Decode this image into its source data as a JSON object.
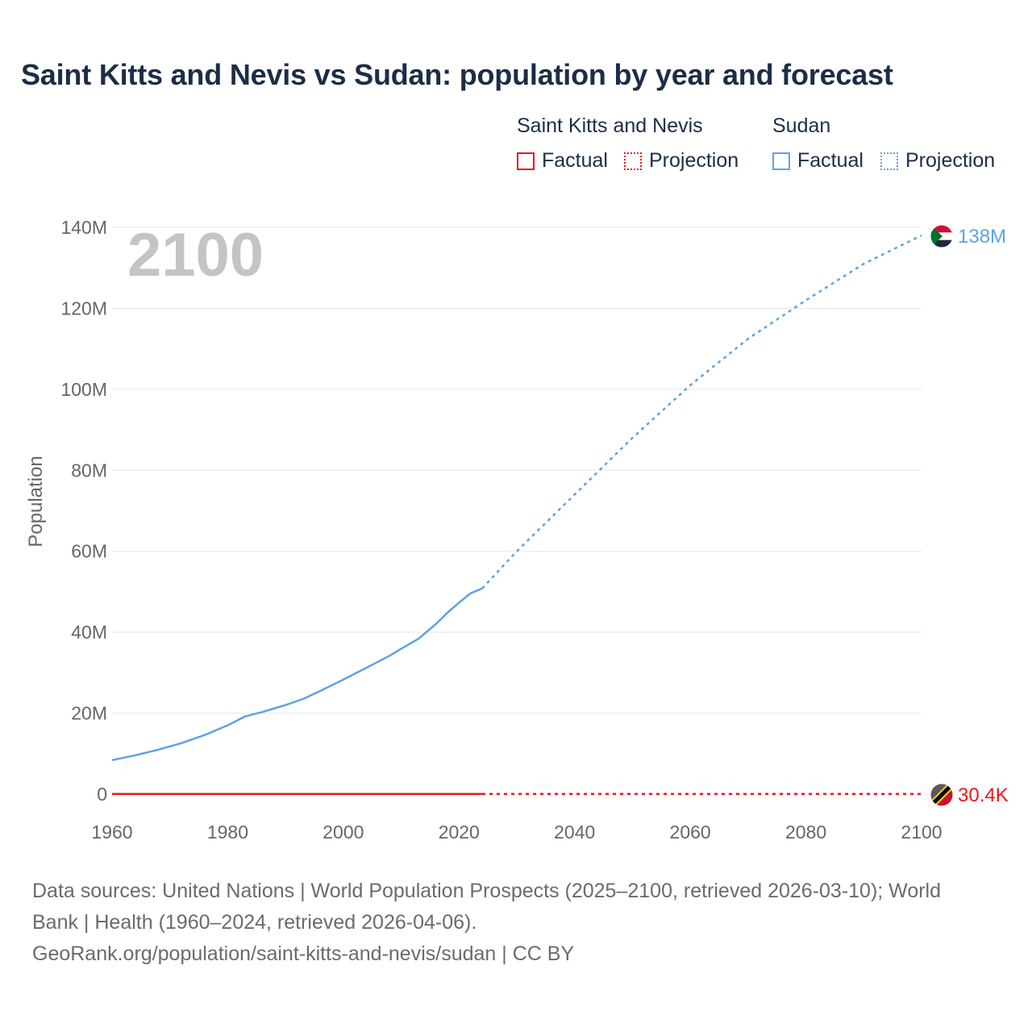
{
  "title": "Saint Kitts and Nevis vs Sudan: population by year and forecast",
  "legend": {
    "groups": [
      {
        "name": "Saint Kitts and Nevis",
        "color": "#e8191c",
        "factual_label": "Factual",
        "projection_label": "Projection"
      },
      {
        "name": "Sudan",
        "color": "#5ea2e3",
        "factual_label": "Factual",
        "projection_label": "Projection"
      }
    ]
  },
  "year_watermark": "2100",
  "footer": {
    "line1": "Data sources: United Nations | World Population Prospects (2025–2100, retrieved 2026-03-10); World",
    "line2": "Bank | Health (1960–2024, retrieved 2026-04-06).",
    "line3": "GeoRank.org/population/saint-kitts-and-nevis/sudan | CC BY"
  },
  "chart_data": {
    "type": "line",
    "title": "Saint Kitts and Nevis vs Sudan: population by year and forecast",
    "xlabel": "",
    "ylabel": "Population",
    "xlim": [
      1960,
      2100
    ],
    "ylim": [
      0,
      140000000
    ],
    "x_ticks": [
      1960,
      1980,
      2000,
      2020,
      2040,
      2060,
      2080,
      2100
    ],
    "x_tick_labels": [
      "1960",
      "1980",
      "2000",
      "2020",
      "2040",
      "2060",
      "2080",
      "2100"
    ],
    "y_ticks": [
      0,
      20000000,
      40000000,
      60000000,
      80000000,
      100000000,
      120000000,
      140000000
    ],
    "y_tick_labels": [
      "0",
      "20M",
      "40M",
      "60M",
      "80M",
      "100M",
      "120M",
      "140M"
    ],
    "grid": true,
    "legend_position": "top-right",
    "series": [
      {
        "name": "Saint Kitts and Nevis",
        "color": "#e8191c",
        "end_label": "30.4K",
        "factual": {
          "x": [
            1960,
            1970,
            1980,
            1990,
            2000,
            2010,
            2020,
            2024
          ],
          "y": [
            51000,
            45000,
            43000,
            41000,
            45000,
            48000,
            47000,
            47000
          ]
        },
        "projection": {
          "x": [
            2024,
            2040,
            2060,
            2080,
            2100
          ],
          "y": [
            47000,
            45000,
            41000,
            36000,
            30400
          ]
        }
      },
      {
        "name": "Sudan",
        "color": "#5ea2e3",
        "end_label": "138M",
        "factual": {
          "x": [
            1960,
            1964,
            1968,
            1972,
            1976,
            1980,
            1983,
            1986,
            1990,
            1993,
            1996,
            2000,
            2004,
            2008,
            2010,
            2013,
            2016,
            2018,
            2020,
            2022,
            2024
          ],
          "y": [
            8400000,
            9600000,
            11000000,
            12600000,
            14600000,
            17000000,
            19200000,
            20300000,
            22000000,
            23500000,
            25500000,
            28300000,
            31200000,
            34200000,
            35900000,
            38400000,
            42000000,
            44800000,
            47300000,
            49600000,
            50800000
          ]
        },
        "projection": {
          "x": [
            2024,
            2030,
            2040,
            2050,
            2060,
            2070,
            2080,
            2090,
            2100
          ],
          "y": [
            50800000,
            60000000,
            74000000,
            88000000,
            101000000,
            112500000,
            122000000,
            131000000,
            138000000
          ]
        }
      }
    ]
  }
}
